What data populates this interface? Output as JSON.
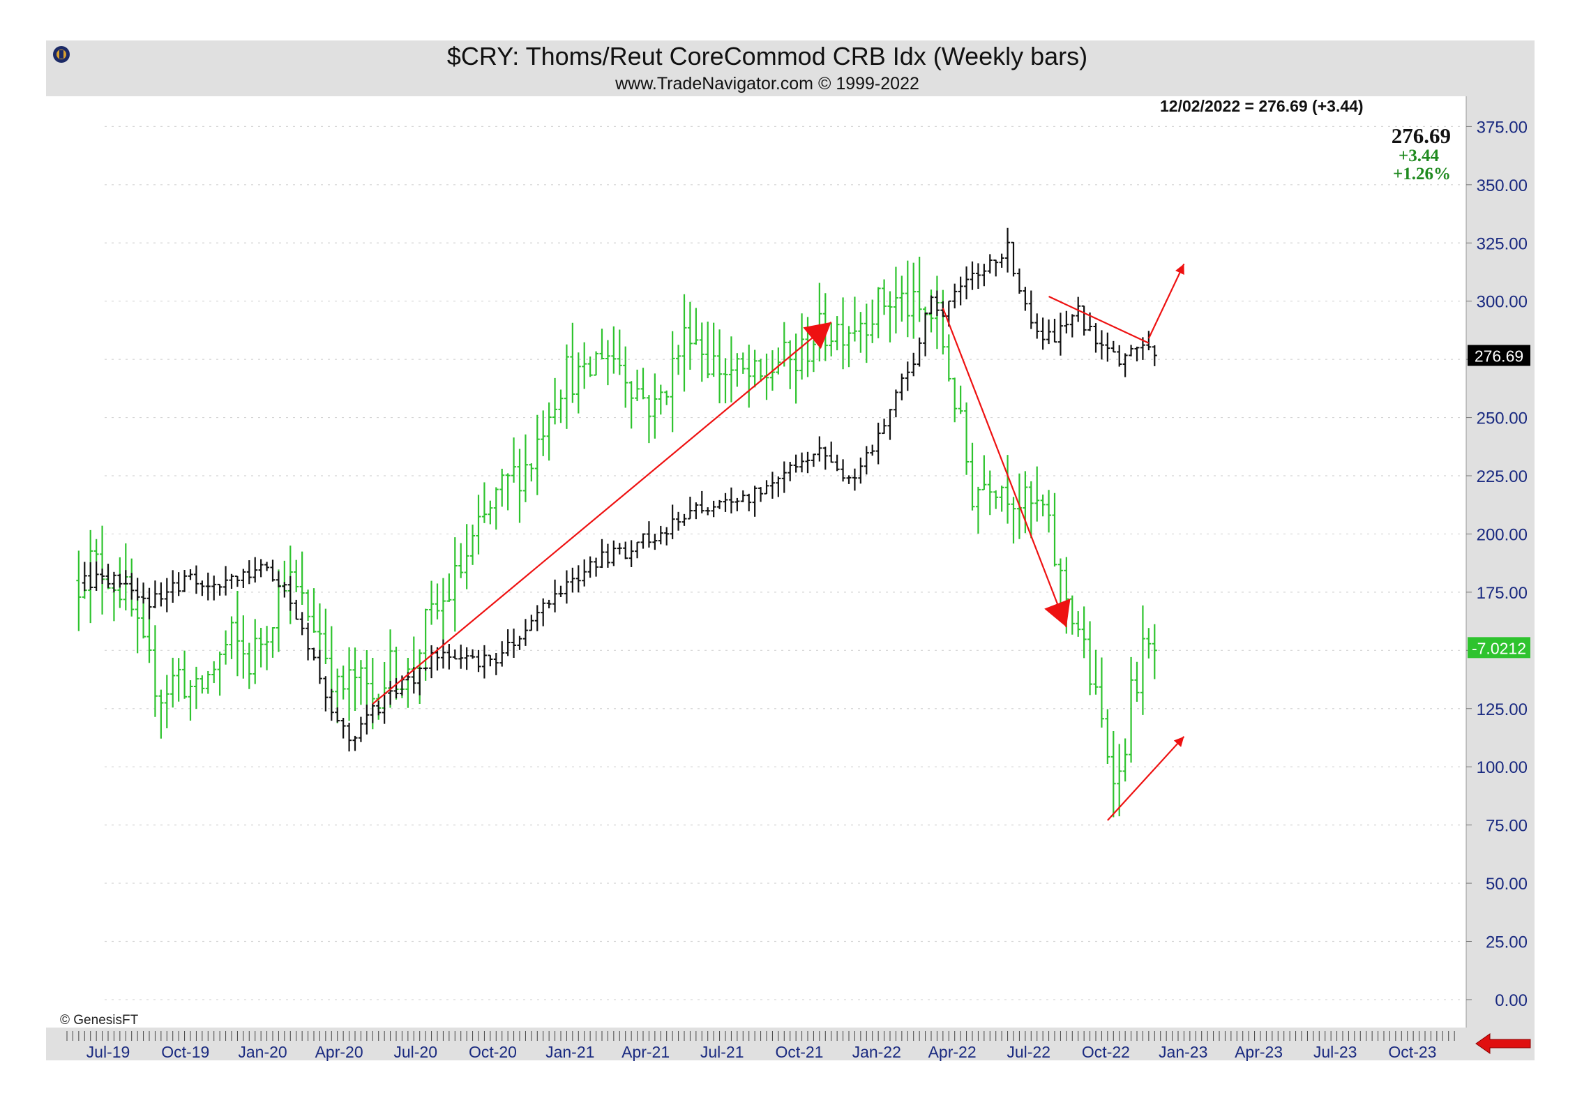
{
  "header": {
    "title": "$CRY:  Thoms/Reut CoreCommod CRB Idx  (Weekly bars)",
    "subtitle": "www.TradeNavigator.com © 1999-2022",
    "date_readout": "12/02/2022 = 276.69 (+3.44)",
    "last_price": "276.69",
    "change": "+3.44",
    "change_pct": "+1.26%",
    "copyright": "© GenesisFT"
  },
  "colors": {
    "frame": "#e0e0e0",
    "price_bars": "#111111",
    "indicator_bars": "#2ec32e",
    "annotation": "#ee1111",
    "axis_text": "#1a2a80",
    "change_text": "#1f8a1f",
    "nav_arrow": "#e01010"
  },
  "chart_data": {
    "type": "ohlc",
    "ylim": [
      -12,
      388
    ],
    "yticks": [
      0,
      25,
      50,
      75,
      100,
      125,
      150,
      175,
      200,
      225,
      250,
      275,
      300,
      325,
      350,
      375
    ],
    "ytick_labels": [
      "0.00",
      "25.00",
      "50.00",
      "75.00",
      "100.00",
      "125.00",
      "150.00",
      "175.00",
      "200.00",
      "225.00",
      "250.00",
      "275.00",
      "300.00",
      "325.00",
      "350.00",
      "375.00"
    ],
    "xlim": [
      "2019-05-13",
      "2023-12-04"
    ],
    "xtick_labels": [
      {
        "label": "Jul-19",
        "date": "2019-07-01"
      },
      {
        "label": "Oct-19",
        "date": "2019-10-01"
      },
      {
        "label": "Jan-20",
        "date": "2020-01-01"
      },
      {
        "label": "Apr-20",
        "date": "2020-04-01"
      },
      {
        "label": "Jul-20",
        "date": "2020-07-01"
      },
      {
        "label": "Oct-20",
        "date": "2020-10-01"
      },
      {
        "label": "Jan-21",
        "date": "2021-01-01"
      },
      {
        "label": "Apr-21",
        "date": "2021-04-01"
      },
      {
        "label": "Jul-21",
        "date": "2021-07-01"
      },
      {
        "label": "Oct-21",
        "date": "2021-10-01"
      },
      {
        "label": "Jan-22",
        "date": "2022-01-01"
      },
      {
        "label": "Apr-22",
        "date": "2022-04-01"
      },
      {
        "label": "Jul-22",
        "date": "2022-07-01"
      },
      {
        "label": "Oct-22",
        "date": "2022-10-01"
      },
      {
        "label": "Jan-23",
        "date": "2023-01-01"
      },
      {
        "label": "Apr-23",
        "date": "2023-04-01"
      },
      {
        "label": "Jul-23",
        "date": "2023-07-01"
      },
      {
        "label": "Oct-23",
        "date": "2023-10-01"
      }
    ],
    "grid": true,
    "series": [
      {
        "role": "price",
        "color": "#111111",
        "last_value_label": "276.69",
        "points": [
          [
            "2019-06-03",
            179
          ],
          [
            "2019-07-01",
            181
          ],
          [
            "2019-08-05",
            172
          ],
          [
            "2019-09-02",
            171
          ],
          [
            "2019-10-01",
            181
          ],
          [
            "2019-11-04",
            178
          ],
          [
            "2019-12-02",
            179
          ],
          [
            "2020-01-06",
            185
          ],
          [
            "2020-02-03",
            172
          ],
          [
            "2020-03-02",
            148
          ],
          [
            "2020-03-16",
            130
          ],
          [
            "2020-03-30",
            122
          ],
          [
            "2020-04-13",
            108
          ],
          [
            "2020-04-27",
            121
          ],
          [
            "2020-05-11",
            124
          ],
          [
            "2020-06-01",
            132
          ],
          [
            "2020-07-06",
            140
          ],
          [
            "2020-08-03",
            152
          ],
          [
            "2020-09-07",
            144
          ],
          [
            "2020-10-05",
            148
          ],
          [
            "2020-11-02",
            154
          ],
          [
            "2020-12-01",
            170
          ],
          [
            "2021-01-04",
            182
          ],
          [
            "2021-02-01",
            188
          ],
          [
            "2021-03-01",
            191
          ],
          [
            "2021-04-05",
            199
          ],
          [
            "2021-05-03",
            204
          ],
          [
            "2021-06-07",
            212
          ],
          [
            "2021-07-05",
            212
          ],
          [
            "2021-08-02",
            215
          ],
          [
            "2021-09-06",
            225
          ],
          [
            "2021-10-04",
            232
          ],
          [
            "2021-10-25",
            238
          ],
          [
            "2021-11-22",
            222
          ],
          [
            "2021-12-13",
            228
          ],
          [
            "2022-01-03",
            242
          ],
          [
            "2022-01-24",
            262
          ],
          [
            "2022-02-14",
            275
          ],
          [
            "2022-03-07",
            300
          ],
          [
            "2022-03-21",
            295
          ],
          [
            "2022-04-04",
            305
          ],
          [
            "2022-04-25",
            311
          ],
          [
            "2022-05-16",
            314
          ],
          [
            "2022-06-06",
            322
          ],
          [
            "2022-06-27",
            296
          ],
          [
            "2022-07-18",
            282
          ],
          [
            "2022-08-08",
            286
          ],
          [
            "2022-08-29",
            296
          ],
          [
            "2022-09-19",
            281
          ],
          [
            "2022-10-10",
            275
          ],
          [
            "2022-10-24",
            276
          ],
          [
            "2022-11-07",
            282
          ],
          [
            "2022-11-21",
            278
          ],
          [
            "2022-12-02",
            276.69
          ]
        ]
      },
      {
        "role": "indicator",
        "color": "#2ec32e",
        "last_value_label": "-7.0212",
        "points": [
          [
            "2019-05-27",
            180
          ],
          [
            "2019-06-10",
            188
          ],
          [
            "2019-07-01",
            183
          ],
          [
            "2019-07-22",
            174
          ],
          [
            "2019-08-12",
            148
          ],
          [
            "2019-09-02",
            132
          ],
          [
            "2019-09-23",
            140
          ],
          [
            "2019-10-14",
            130
          ],
          [
            "2019-11-04",
            143
          ],
          [
            "2019-11-25",
            155
          ],
          [
            "2019-12-16",
            145
          ],
          [
            "2020-01-06",
            160
          ],
          [
            "2020-01-27",
            183
          ],
          [
            "2020-02-17",
            170
          ],
          [
            "2020-03-09",
            158
          ],
          [
            "2020-03-30",
            132
          ],
          [
            "2020-04-20",
            138
          ],
          [
            "2020-05-11",
            130
          ],
          [
            "2020-06-01",
            142
          ],
          [
            "2020-06-22",
            138
          ],
          [
            "2020-07-13",
            160
          ],
          [
            "2020-08-03",
            170
          ],
          [
            "2020-08-24",
            185
          ],
          [
            "2020-09-14",
            200
          ],
          [
            "2020-10-05",
            215
          ],
          [
            "2020-10-26",
            225
          ],
          [
            "2020-11-16",
            232
          ],
          [
            "2020-12-07",
            256
          ],
          [
            "2020-12-28",
            270
          ],
          [
            "2021-01-18",
            265
          ],
          [
            "2021-02-08",
            280
          ],
          [
            "2021-03-01",
            274
          ],
          [
            "2021-03-22",
            262
          ],
          [
            "2021-04-12",
            253
          ],
          [
            "2021-05-03",
            272
          ],
          [
            "2021-05-24",
            290
          ],
          [
            "2021-06-14",
            275
          ],
          [
            "2021-07-05",
            270
          ],
          [
            "2021-07-26",
            268
          ],
          [
            "2021-08-16",
            265
          ],
          [
            "2021-09-06",
            275
          ],
          [
            "2021-09-27",
            273
          ],
          [
            "2021-10-18",
            285
          ],
          [
            "2021-11-08",
            288
          ],
          [
            "2021-11-29",
            290
          ],
          [
            "2021-12-20",
            294
          ],
          [
            "2022-01-10",
            300
          ],
          [
            "2022-01-31",
            300
          ],
          [
            "2022-02-21",
            294
          ],
          [
            "2022-03-14",
            293
          ],
          [
            "2022-04-04",
            258
          ],
          [
            "2022-04-25",
            218
          ],
          [
            "2022-05-16",
            225
          ],
          [
            "2022-06-06",
            220
          ],
          [
            "2022-06-27",
            212
          ],
          [
            "2022-07-18",
            210
          ],
          [
            "2022-08-08",
            180
          ],
          [
            "2022-08-29",
            160
          ],
          [
            "2022-09-19",
            128
          ],
          [
            "2022-10-03",
            108
          ],
          [
            "2022-10-17",
            95
          ],
          [
            "2022-10-31",
            130
          ],
          [
            "2022-11-14",
            148
          ],
          [
            "2022-12-02",
            150
          ]
        ]
      }
    ],
    "annotations": [
      {
        "type": "trend-arrow",
        "from": [
          "2020-05-11",
          127
        ],
        "to": [
          "2021-11-08",
          291
        ]
      },
      {
        "type": "trend-arrow",
        "from": [
          "2022-03-21",
          297
        ],
        "to": [
          "2022-08-15",
          160
        ]
      },
      {
        "type": "trendline",
        "from": [
          "2022-07-25",
          302
        ],
        "to": [
          "2022-11-21",
          282
        ]
      },
      {
        "type": "arrow",
        "from": [
          "2022-11-21",
          284
        ],
        "to": [
          "2023-01-02",
          316
        ]
      },
      {
        "type": "arrow",
        "from": [
          "2022-10-03",
          77
        ],
        "to": [
          "2023-01-02",
          113
        ]
      }
    ]
  }
}
